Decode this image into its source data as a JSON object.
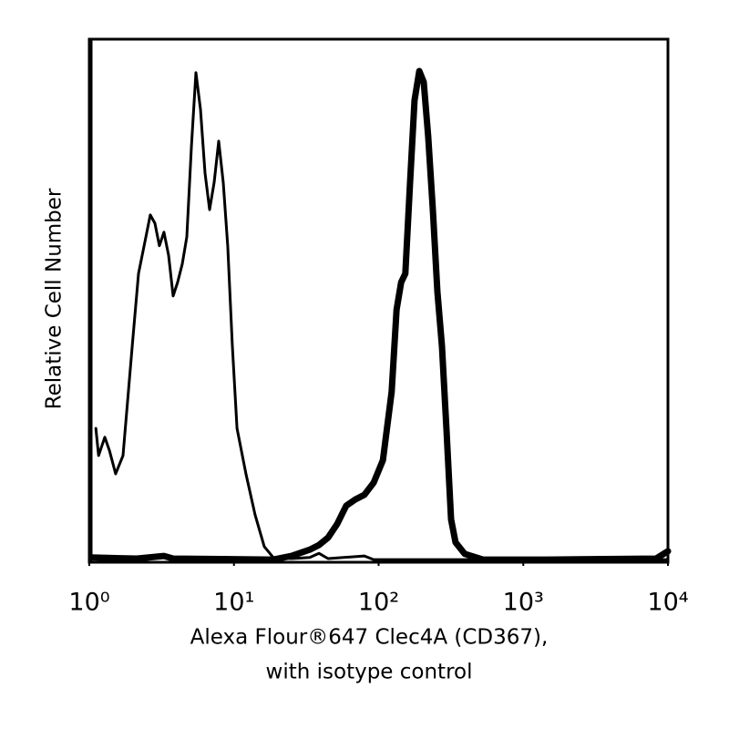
{
  "chart_data": {
    "type": "line",
    "xlabel": [
      "Alexa Flour®647 Clec4A (CD367),",
      "with isotype control"
    ],
    "ylabel": "Relative Cell Number",
    "xscale": "log",
    "xlim": [
      1,
      10000
    ],
    "xticks": [
      {
        "value": 1,
        "label": "10⁰"
      },
      {
        "value": 10,
        "label": "10¹"
      },
      {
        "value": 100,
        "label": "10²"
      },
      {
        "value": 1000,
        "label": "10³"
      },
      {
        "value": 10000,
        "label": "10⁴"
      }
    ],
    "ylim": [
      0,
      100
    ],
    "series": [
      {
        "color": "#000000",
        "line_width": 3,
        "x": [
          1.11,
          1.16,
          1.28,
          1.38,
          1.52,
          1.71,
          1.98,
          2.19,
          2.46,
          2.64,
          2.84,
          3.05,
          3.28,
          3.53,
          3.8,
          4.08,
          4.39,
          4.72,
          5.08,
          5.46,
          5.87,
          6.31,
          6.78,
          7.29,
          7.84,
          8.43,
          9.06,
          9.75,
          10.5,
          12.1,
          14.0,
          16.2,
          18.7,
          25.0,
          33.4,
          38.7,
          44.7,
          79.8,
          92.3,
          340,
          10000
        ],
        "values": [
          25.6,
          20.4,
          23.9,
          21.3,
          16.9,
          20.4,
          41.3,
          55.2,
          62.2,
          66.4,
          64.8,
          60.5,
          63.1,
          58.7,
          50.9,
          53.5,
          57.0,
          62.2,
          79.6,
          93.6,
          86.6,
          74.4,
          67.4,
          72.6,
          80.5,
          72.6,
          60.5,
          41.3,
          25.6,
          16.9,
          9.1,
          3.0,
          0.9,
          0.7,
          0.9,
          1.7,
          0.7,
          1.2,
          0.5,
          0.5,
          0.5
        ]
      },
      {
        "color": "#000000",
        "line_width": 7,
        "x": [
          1.03,
          2.13,
          3.28,
          3.8,
          18.7,
          25.0,
          33.4,
          38.7,
          44.7,
          51.7,
          59.7,
          69.0,
          79.8,
          92.3,
          107,
          123,
          133,
          143,
          153,
          165,
          177,
          191,
          205,
          220,
          237,
          255,
          274,
          294,
          317,
          340,
          394,
          526,
          1450,
          8280,
          10000
        ],
        "values": [
          0.9,
          0.7,
          1.2,
          0.7,
          0.5,
          1.2,
          2.4,
          3.3,
          4.7,
          7.3,
          10.8,
          12.0,
          12.9,
          15.2,
          19.5,
          32.6,
          48.3,
          53.5,
          55.2,
          72.6,
          88.3,
          93.9,
          91.8,
          81.4,
          67.4,
          51.7,
          41.3,
          25.6,
          8.2,
          3.8,
          1.6,
          0.5,
          0.5,
          0.7,
          2.1
        ]
      }
    ]
  }
}
